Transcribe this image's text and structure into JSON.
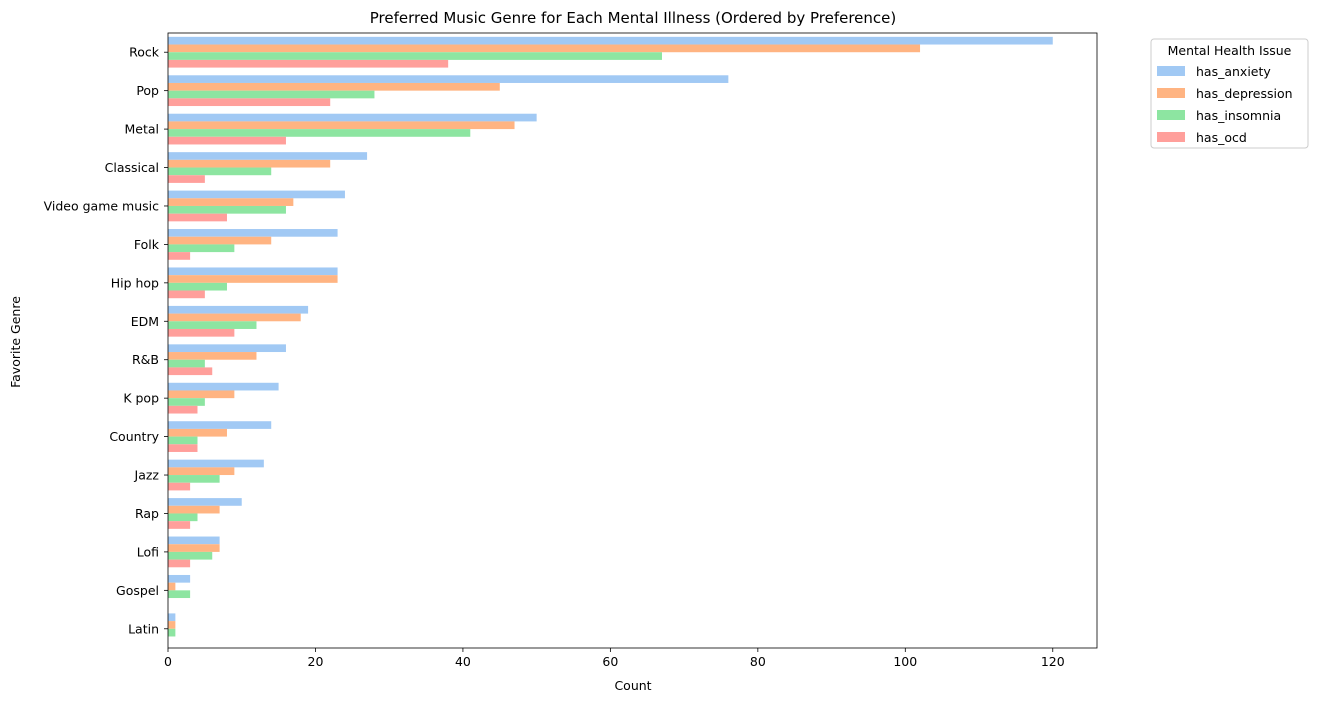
{
  "chart_data": {
    "type": "bar",
    "orientation": "horizontal",
    "title": "Preferred Music Genre for Each Mental Illness (Ordered by Preference)",
    "xlabel": "Count",
    "ylabel": "Favorite Genre",
    "xlim": [
      0,
      126
    ],
    "xticks": [
      0,
      20,
      40,
      60,
      80,
      100,
      120
    ],
    "grid": false,
    "legend": {
      "title": "Mental Health Issue",
      "placement": "outside-top-right"
    },
    "categories": [
      "Rock",
      "Pop",
      "Metal",
      "Classical",
      "Video game music",
      "Folk",
      "Hip hop",
      "EDM",
      "R&B",
      "K pop",
      "Country",
      "Jazz",
      "Rap",
      "Lofi",
      "Gospel",
      "Latin"
    ],
    "series": [
      {
        "name": "has_anxiety",
        "color": "#a1c9f4",
        "values": [
          120,
          76,
          50,
          27,
          24,
          23,
          23,
          19,
          16,
          15,
          14,
          13,
          10,
          7,
          3,
          1
        ]
      },
      {
        "name": "has_depression",
        "color": "#ffb482",
        "values": [
          102,
          45,
          47,
          22,
          17,
          14,
          23,
          18,
          12,
          9,
          8,
          9,
          7,
          7,
          1,
          1
        ]
      },
      {
        "name": "has_insomnia",
        "color": "#8de5a1",
        "values": [
          67,
          28,
          41,
          14,
          16,
          9,
          8,
          12,
          5,
          5,
          4,
          7,
          4,
          6,
          3,
          1
        ]
      },
      {
        "name": "has_ocd",
        "color": "#ff9f9b",
        "values": [
          38,
          22,
          16,
          5,
          8,
          3,
          5,
          9,
          6,
          4,
          4,
          3,
          3,
          3,
          0,
          0
        ]
      }
    ]
  }
}
